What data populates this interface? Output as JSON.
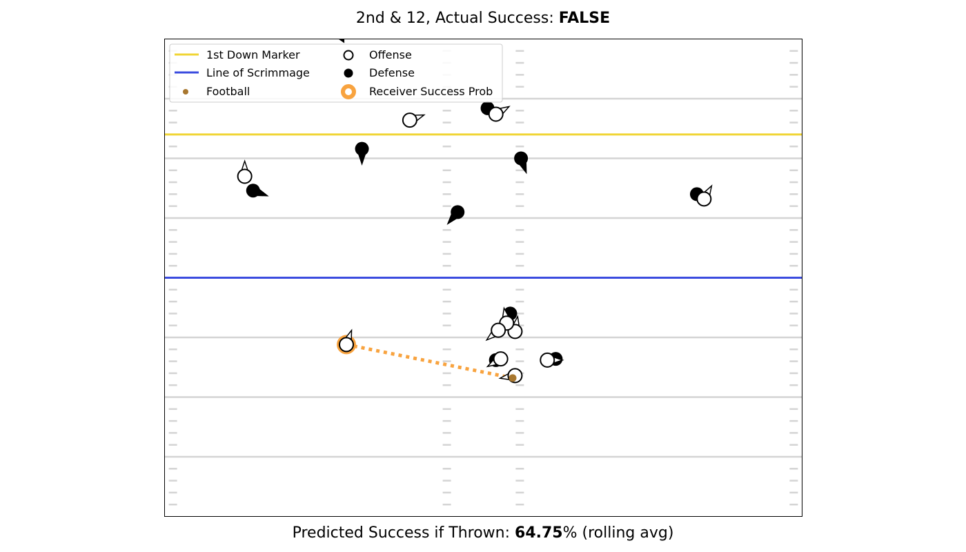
{
  "header": {
    "title_prefix": "2nd & 12, Actual Success: ",
    "title_value": "FALSE"
  },
  "footer": {
    "prefix": "Predicted Success if Thrown: ",
    "value": "64.75",
    "suffix": "% (rolling avg)"
  },
  "legend": {
    "first_down": "1st Down Marker",
    "los": "Line of Scrimmage",
    "football": "Football",
    "offense": "Offense",
    "defense": "Defense",
    "receiver_prob": "Receiver Success Prob"
  },
  "colors": {
    "first_down": "#f0d535",
    "los": "#3a4bdf",
    "football": "#a8772f",
    "receiver_prob": "#f8a33f",
    "field_line": "#d4d4d4"
  },
  "chart_data": {
    "type": "scatter",
    "xlim": [
      0,
      53.3
    ],
    "ylim": [
      0,
      40
    ],
    "grid": true,
    "legend_position": "top-left",
    "first_down_y": 32,
    "line_of_scrimmage_y": 20,
    "offense": [
      {
        "x": 20.5,
        "y": 33.2,
        "dir": 70
      },
      {
        "x": 27.7,
        "y": 33.7,
        "dir": 60
      },
      {
        "x": 6.7,
        "y": 28.5,
        "dir": 0
      },
      {
        "x": 45.1,
        "y": 26.6,
        "dir": 30
      },
      {
        "x": 29.3,
        "y": 15.5,
        "dir": 10
      },
      {
        "x": 28.6,
        "y": 16.2,
        "dir": -10
      },
      {
        "x": 27.9,
        "y": 15.6,
        "dir": -130
      },
      {
        "x": 15.2,
        "y": 14.4,
        "dir": 20
      },
      {
        "x": 28.1,
        "y": 13.2,
        "dir": -120
      },
      {
        "x": 32.0,
        "y": 13.1,
        "dir": 90
      },
      {
        "x": 29.3,
        "y": 11.8,
        "dir": -100
      }
    ],
    "defense": [
      {
        "x": 27.0,
        "y": 34.2,
        "dir": null
      },
      {
        "x": 29.8,
        "y": 30.0,
        "dir": 160
      },
      {
        "x": 16.5,
        "y": 30.8,
        "dir": 180
      },
      {
        "x": 7.4,
        "y": 27.3,
        "dir": 110
      },
      {
        "x": 24.5,
        "y": 25.5,
        "dir": -140
      },
      {
        "x": 44.5,
        "y": 27.0,
        "dir": null
      },
      {
        "x": 28.9,
        "y": 17.0,
        "dir": null
      },
      {
        "x": 27.7,
        "y": 13.1,
        "dir": null
      },
      {
        "x": 32.7,
        "y": 13.2,
        "dir": null
      }
    ],
    "football": {
      "x": 29.1,
      "y": 11.6
    },
    "receiver": {
      "x": 15.2,
      "y": 14.4,
      "success_prob": 64.75
    },
    "offscreen_marker": {
      "x": 14.8,
      "y": 39.9
    }
  }
}
